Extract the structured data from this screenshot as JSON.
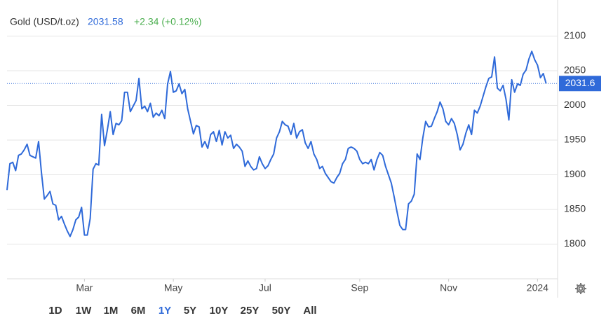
{
  "chart_data": {
    "type": "line",
    "title": "Gold (USD/t.oz)",
    "price": "2031.58",
    "change": "+2.34 (+0.12%)",
    "last_label": "2031.6",
    "series": [
      {
        "name": "Gold",
        "color": "#2f6ad9",
        "values": [
          1878,
          1916,
          1918,
          1906,
          1928,
          1930,
          1936,
          1944,
          1928,
          1926,
          1924,
          1948,
          1903,
          1865,
          1870,
          1876,
          1858,
          1856,
          1835,
          1840,
          1829,
          1819,
          1811,
          1821,
          1835,
          1839,
          1853,
          1813,
          1813,
          1837,
          1908,
          1916,
          1914,
          1987,
          1942,
          1965,
          1991,
          1958,
          1974,
          1972,
          1978,
          2019,
          2019,
          1991,
          1999,
          2007,
          2039,
          1995,
          1999,
          1991,
          2003,
          1983,
          1989,
          1985,
          1993,
          1981,
          2031,
          2049,
          2019,
          2021,
          2031,
          2017,
          2023,
          1995,
          1977,
          1959,
          1971,
          1969,
          1940,
          1948,
          1938,
          1958,
          1962,
          1948,
          1964,
          1943,
          1962,
          1953,
          1957,
          1938,
          1944,
          1940,
          1934,
          1912,
          1920,
          1912,
          1907,
          1909,
          1926,
          1916,
          1909,
          1913,
          1922,
          1930,
          1953,
          1962,
          1977,
          1972,
          1970,
          1958,
          1974,
          1953,
          1962,
          1965,
          1946,
          1938,
          1948,
          1930,
          1922,
          1909,
          1912,
          1902,
          1896,
          1890,
          1888,
          1896,
          1902,
          1916,
          1922,
          1938,
          1940,
          1938,
          1934,
          1922,
          1916,
          1918,
          1916,
          1922,
          1907,
          1922,
          1932,
          1928,
          1912,
          1900,
          1888,
          1868,
          1847,
          1827,
          1821,
          1821,
          1858,
          1862,
          1872,
          1930,
          1922,
          1953,
          1977,
          1969,
          1970,
          1981,
          1991,
          2005,
          1995,
          1977,
          1972,
          1981,
          1974,
          1958,
          1936,
          1944,
          1960,
          1972,
          1958,
          1993,
          1989,
          1999,
          2013,
          2027,
          2039,
          2041,
          2070,
          2025,
          2021,
          2029,
          2009,
          1979,
          2037,
          2019,
          2031,
          2029,
          2045,
          2051,
          2067,
          2078,
          2066,
          2058,
          2040,
          2046,
          2031.58
        ]
      }
    ],
    "xlim": [
      0,
      192
    ],
    "xticks": [
      {
        "value": 27,
        "label": "Mar"
      },
      {
        "value": 58,
        "label": "May"
      },
      {
        "value": 90,
        "label": "Jul"
      },
      {
        "value": 123,
        "label": "Sep"
      },
      {
        "value": 154,
        "label": "Nov"
      },
      {
        "value": 185,
        "label": "2024"
      }
    ],
    "ylim": [
      1750,
      2150
    ],
    "yticks": [
      1800,
      1850,
      1900,
      1950,
      2000,
      2050,
      2100
    ],
    "grid": true,
    "ranges": [
      "1D",
      "1W",
      "1M",
      "6M",
      "1Y",
      "5Y",
      "10Y",
      "25Y",
      "50Y",
      "All"
    ]
  }
}
